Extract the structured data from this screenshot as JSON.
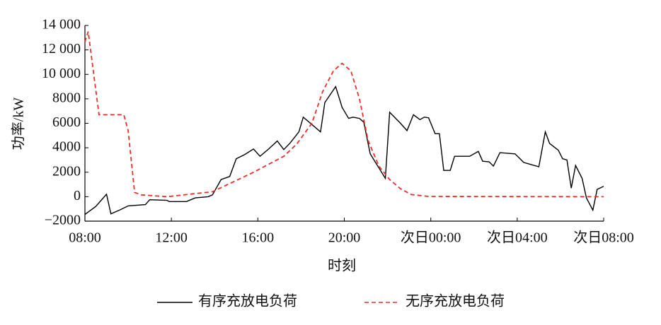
{
  "chart_data": {
    "type": "line",
    "xlabel": "时刻",
    "ylabel": "功率/kW",
    "xlim": [
      0,
      24
    ],
    "ylim": [
      -2000,
      14000
    ],
    "xticks": [
      {
        "value": 0,
        "label": "08:00"
      },
      {
        "value": 4,
        "label": "12:00"
      },
      {
        "value": 8,
        "label": "16:00"
      },
      {
        "value": 12,
        "label": "20:00"
      },
      {
        "value": 16,
        "label": "次日00:00"
      },
      {
        "value": 20,
        "label": "次日04:00"
      },
      {
        "value": 24,
        "label": "次日08:00"
      }
    ],
    "yticks": [
      {
        "value": 14000,
        "label": "14 000"
      },
      {
        "value": 12000,
        "label": "12 000"
      },
      {
        "value": 10000,
        "label": "10 000"
      },
      8000,
      6000,
      4000,
      2000,
      0,
      {
        "value": -2000,
        "label": "−2000"
      }
    ],
    "legend": "bottom",
    "series": [
      {
        "name": "有序充放电负荷",
        "color": "#000000",
        "style": "solid",
        "x": [
          0,
          0.5,
          1.0,
          1.2,
          1.6,
          2.0,
          2.8,
          3.0,
          3.8,
          3.9,
          4.7,
          5.1,
          5.7,
          5.9,
          6.3,
          6.7,
          7.0,
          7.4,
          7.8,
          8.1,
          8.5,
          8.9,
          9.2,
          9.5,
          9.9,
          10.1,
          10.5,
          10.9,
          11.1,
          11.6,
          11.9,
          12.2,
          12.4,
          12.7,
          12.9,
          13.2,
          13.9,
          14.1,
          14.6,
          14.9,
          15.2,
          15.5,
          15.7,
          15.9,
          16.2,
          16.4,
          16.6,
          16.9,
          17.1,
          17.8,
          18.2,
          18.4,
          18.7,
          18.9,
          19.2,
          19.9,
          20.3,
          20.7,
          21.0,
          21.3,
          21.5,
          21.9,
          22.1,
          22.3,
          22.5,
          22.7,
          23.0,
          23.2,
          23.5,
          23.7,
          24.0
        ],
        "values": [
          -1450,
          -800,
          200,
          -1400,
          -1100,
          -750,
          -650,
          -250,
          -300,
          -400,
          -400,
          -100,
          0,
          150,
          1400,
          1650,
          3100,
          3450,
          3900,
          3300,
          3900,
          4550,
          3850,
          4400,
          5300,
          6500,
          5900,
          5300,
          7700,
          9000,
          7300,
          6400,
          6500,
          6400,
          6100,
          3500,
          1500,
          6900,
          6000,
          5400,
          6700,
          6300,
          6500,
          6450,
          5150,
          5150,
          2150,
          2150,
          3300,
          3300,
          3700,
          2900,
          2850,
          2500,
          3600,
          3500,
          2800,
          2600,
          2450,
          5300,
          4350,
          3800,
          3100,
          3000,
          700,
          2550,
          1500,
          -100,
          -1100,
          600,
          850
        ]
      },
      {
        "name": "无序充放电负荷",
        "color": "#e8302a",
        "style": "dashed",
        "x": [
          0,
          0.15,
          0.65,
          1.8,
          2.0,
          2.3,
          2.6,
          3.8,
          5.9,
          7.8,
          9.2,
          9.8,
          10.5,
          11,
          11.5,
          11.9,
          12.3,
          12.7,
          13.1,
          13.6,
          14.1,
          14.6,
          15.1,
          15.9,
          24
        ],
        "values": [
          12650,
          13500,
          6700,
          6700,
          5400,
          350,
          150,
          0,
          400,
          2000,
          3300,
          4300,
          6000,
          8600,
          10300,
          10900,
          10300,
          8000,
          4600,
          2500,
          1400,
          650,
          170,
          20,
          0
        ]
      }
    ]
  }
}
